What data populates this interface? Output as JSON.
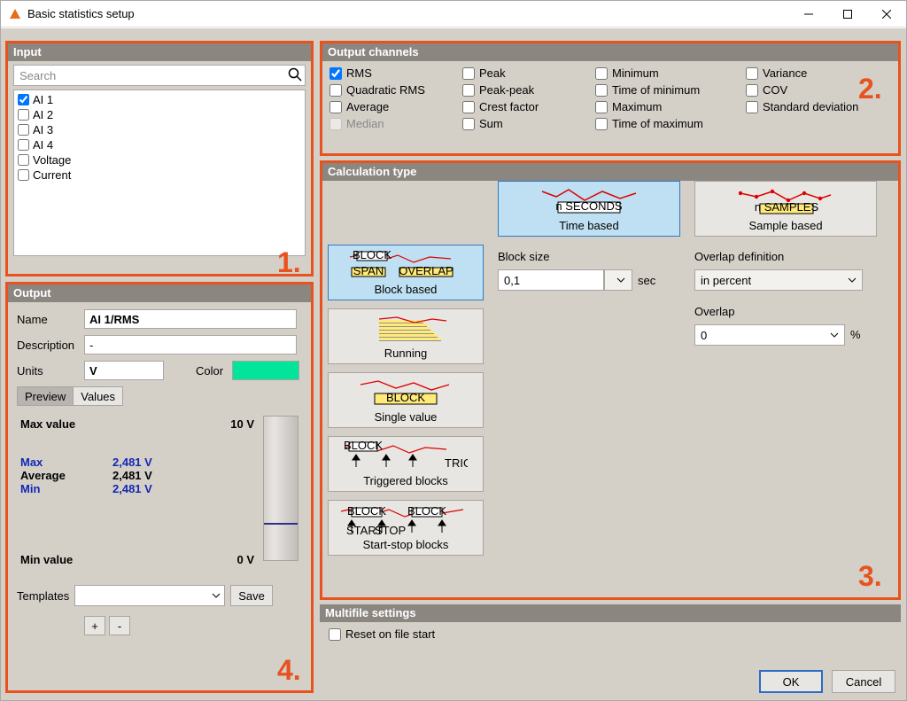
{
  "window": {
    "title": "Basic statistics setup"
  },
  "annotations": {
    "n1": "1.",
    "n2": "2.",
    "n3": "3.",
    "n4": "4."
  },
  "colors": {
    "accent_orange": "#e8521e",
    "highlight_blue": "#bfe0f2",
    "swatch": "#00e59a"
  },
  "input": {
    "title": "Input",
    "search_placeholder": "Search",
    "channels": [
      {
        "label": "AI 1",
        "checked": true
      },
      {
        "label": "AI 2",
        "checked": false
      },
      {
        "label": "AI 3",
        "checked": false
      },
      {
        "label": "AI 4",
        "checked": false
      },
      {
        "label": "Voltage",
        "checked": false
      },
      {
        "label": "Current",
        "checked": false
      }
    ]
  },
  "output_channels": {
    "title": "Output channels",
    "items": [
      {
        "label": "RMS",
        "checked": true
      },
      {
        "label": "Peak",
        "checked": false
      },
      {
        "label": "Minimum",
        "checked": false
      },
      {
        "label": "Variance",
        "checked": false
      },
      {
        "label": "Quadratic RMS",
        "checked": false
      },
      {
        "label": "Peak-peak",
        "checked": false
      },
      {
        "label": "Time of minimum",
        "checked": false
      },
      {
        "label": "COV",
        "checked": false
      },
      {
        "label": "Average",
        "checked": false
      },
      {
        "label": "Crest factor",
        "checked": false
      },
      {
        "label": "Maximum",
        "checked": false
      },
      {
        "label": "Standard deviation",
        "checked": false
      },
      {
        "label": "Median",
        "checked": false,
        "disabled": true
      },
      {
        "label": "Sum",
        "checked": false
      },
      {
        "label": "Time of maximum",
        "checked": false
      }
    ]
  },
  "calc": {
    "title": "Calculation type",
    "types": {
      "time_based": "Time based",
      "sample_based": "Sample based",
      "block_based": "Block based",
      "running": "Running",
      "single_value": "Single value",
      "triggered_blocks": "Triggered blocks",
      "start_stop_blocks": "Start-stop blocks"
    },
    "block_size_label": "Block size",
    "block_size_value": "0,1",
    "block_size_unit": "sec",
    "overlap_def_label": "Overlap definition",
    "overlap_def_value": "in percent",
    "overlap_label": "Overlap",
    "overlap_value": "0",
    "overlap_unit": "%"
  },
  "output": {
    "title": "Output",
    "name_label": "Name",
    "name_value": "AI 1/RMS",
    "description_label": "Description",
    "description_value": "-",
    "units_label": "Units",
    "units_value": "V",
    "color_label": "Color",
    "tabs": {
      "preview": "Preview",
      "values": "Values"
    },
    "preview": {
      "max_value_label": "Max value",
      "max_value_value": "10 V",
      "min_value_label": "Min value",
      "min_value_value": "0 V",
      "stats": [
        {
          "label": "Max",
          "value": "2,481 V",
          "blue": true
        },
        {
          "label": "Average",
          "value": "2,481 V",
          "blue": false
        },
        {
          "label": "Min",
          "value": "2,481 V",
          "blue": true
        }
      ]
    },
    "templates_label": "Templates",
    "save_label": "Save",
    "plus": "+",
    "minus": "-"
  },
  "multifile": {
    "title": "Multifile settings",
    "reset_label": "Reset on file start",
    "reset_checked": false
  },
  "dialog": {
    "ok": "OK",
    "cancel": "Cancel"
  }
}
